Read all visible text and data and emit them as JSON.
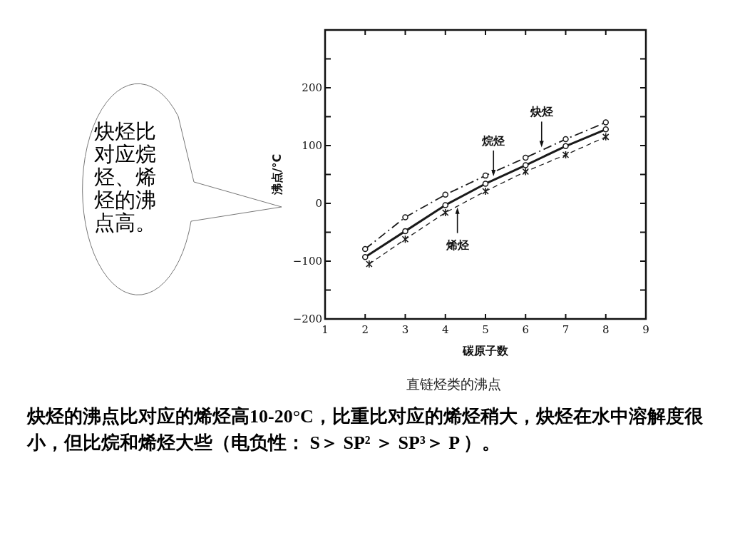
{
  "chart_data": {
    "type": "line",
    "title": "直链烃类的沸点",
    "xlabel": "碳原子数",
    "ylabel": "沸点/°C",
    "xlim": [
      1,
      9
    ],
    "ylim": [
      -200,
      300
    ],
    "xticks": [
      1,
      2,
      3,
      4,
      5,
      6,
      7,
      8,
      9
    ],
    "yticks": [
      -200,
      {
        "value": -150,
        "label": null
      },
      -100,
      {
        "value": -50,
        "label": null
      },
      0,
      {
        "value": 50,
        "label": null
      },
      100,
      {
        "value": 150,
        "label": null
      },
      200,
      {
        "value": 250,
        "label": null
      }
    ],
    "grid": false,
    "series": [
      {
        "color": "#1a1a1a",
        "x": [
          2,
          3,
          4,
          5,
          6,
          7,
          8
        ],
        "values": [
          -79,
          -24,
          15,
          48,
          79,
          111,
          140
        ],
        "marker": "circle",
        "line_style": "dashdot"
      },
      {
        "color": "#1a1a1a",
        "x": [
          2,
          3,
          4,
          5,
          6,
          7,
          8
        ],
        "values": [
          -93,
          -48,
          -3,
          34,
          66,
          99,
          128
        ],
        "marker": "circle",
        "line_style": "solid"
      },
      {
        "color": "#1a1a1a",
        "x": [
          2.1,
          3,
          4,
          5,
          6,
          7,
          8
        ],
        "values": [
          -105,
          -62,
          -16,
          21,
          55,
          84,
          115
        ],
        "marker": "cross",
        "line_style": "dashed"
      }
    ],
    "annotations": [
      {
        "text": "炔烃",
        "x": 6.4,
        "y": 97
      },
      {
        "text": "烷烃",
        "x": 5.2,
        "y": 47
      },
      {
        "text": "烯烃",
        "x": 4.3,
        "y": -7
      },
      "炔烃比对应烷烃、烯烃的沸点高。",
      "炔烃的沸点比对应的烯烃高10-20°C，比重比对应的烯烃稍大，炔烃在水中溶解度很小，但比烷和烯烃大些（电负性： S＞ SP² ＞ SP³＞ P ）。"
    ]
  }
}
